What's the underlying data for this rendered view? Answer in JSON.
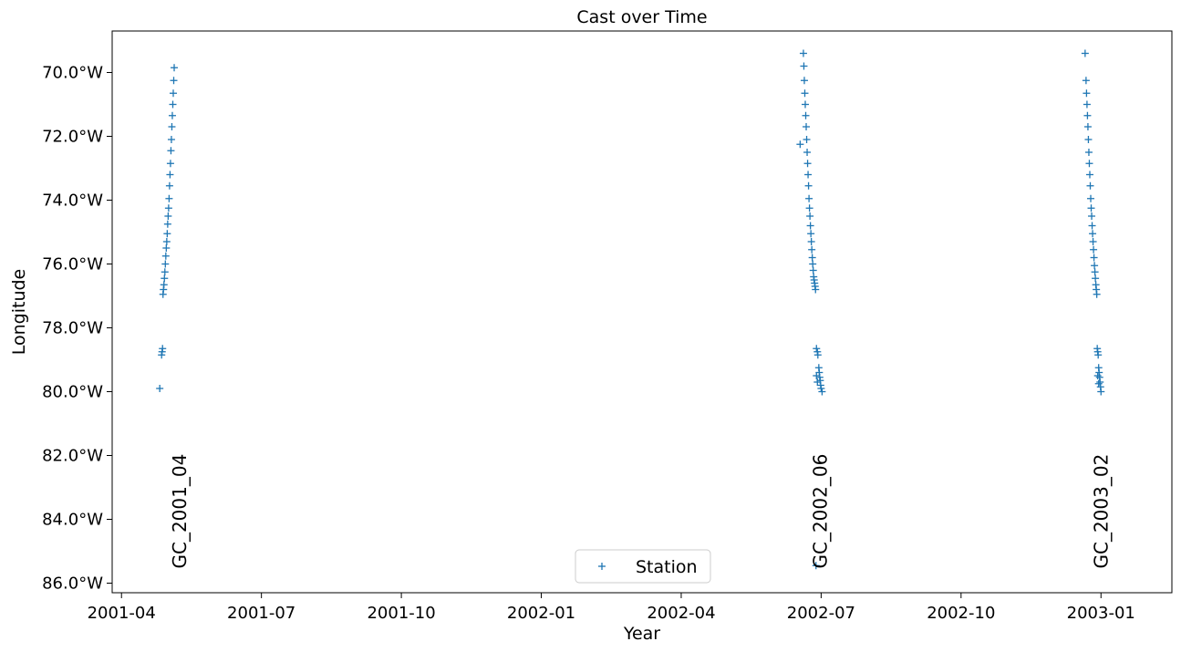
{
  "chart_data": {
    "type": "scatter",
    "title": "Cast over Time",
    "xlabel": "Year",
    "ylabel": "Longitude",
    "x_tick_labels": [
      "2001-04",
      "2001-07",
      "2001-10",
      "2002-01",
      "2002-04",
      "2002-07",
      "2002-10",
      "2003-01"
    ],
    "y_tick_values": [
      70,
      72,
      74,
      76,
      78,
      80,
      82,
      84,
      86
    ],
    "y_tick_labels": [
      "70.0°W",
      "72.0°W",
      "74.0°W",
      "76.0°W",
      "78.0°W",
      "80.0°W",
      "82.0°W",
      "84.0°W",
      "86.0°W"
    ],
    "xlim_months": [
      -0.2,
      22.52
    ],
    "ylim_west_deg": [
      68.7,
      86.3
    ],
    "y_axis_inverted": true,
    "legend": {
      "label": "Station",
      "marker": "+",
      "position": "lower-center"
    },
    "marker_color": "#1f77b4",
    "series": [
      {
        "name": "Station",
        "points": [
          {
            "month": 0.82,
            "lon": 79.9
          },
          {
            "month": 0.86,
            "lon": 78.85
          },
          {
            "month": 0.87,
            "lon": 78.75
          },
          {
            "month": 0.88,
            "lon": 78.65
          },
          {
            "month": 0.89,
            "lon": 76.95
          },
          {
            "month": 0.9,
            "lon": 76.8
          },
          {
            "month": 0.91,
            "lon": 76.65
          },
          {
            "month": 0.92,
            "lon": 76.45
          },
          {
            "month": 0.93,
            "lon": 76.25
          },
          {
            "month": 0.94,
            "lon": 76.0
          },
          {
            "month": 0.95,
            "lon": 75.75
          },
          {
            "month": 0.96,
            "lon": 75.5
          },
          {
            "month": 0.97,
            "lon": 75.3
          },
          {
            "month": 0.98,
            "lon": 75.05
          },
          {
            "month": 0.99,
            "lon": 74.75
          },
          {
            "month": 1.0,
            "lon": 74.5
          },
          {
            "month": 1.01,
            "lon": 74.25
          },
          {
            "month": 1.02,
            "lon": 73.95
          },
          {
            "month": 1.03,
            "lon": 73.55
          },
          {
            "month": 1.04,
            "lon": 73.2
          },
          {
            "month": 1.05,
            "lon": 72.85
          },
          {
            "month": 1.06,
            "lon": 72.45
          },
          {
            "month": 1.07,
            "lon": 72.1
          },
          {
            "month": 1.08,
            "lon": 71.7
          },
          {
            "month": 1.09,
            "lon": 71.35
          },
          {
            "month": 1.1,
            "lon": 71.0
          },
          {
            "month": 1.11,
            "lon": 70.65
          },
          {
            "month": 1.12,
            "lon": 70.25
          },
          {
            "month": 1.13,
            "lon": 69.85
          },
          {
            "month": 14.55,
            "lon": 72.25
          },
          {
            "month": 14.62,
            "lon": 69.4
          },
          {
            "month": 14.63,
            "lon": 69.8
          },
          {
            "month": 14.64,
            "lon": 70.25
          },
          {
            "month": 14.65,
            "lon": 70.65
          },
          {
            "month": 14.66,
            "lon": 71.0
          },
          {
            "month": 14.67,
            "lon": 71.35
          },
          {
            "month": 14.68,
            "lon": 71.7
          },
          {
            "month": 14.69,
            "lon": 72.1
          },
          {
            "month": 14.7,
            "lon": 72.5
          },
          {
            "month": 14.71,
            "lon": 72.85
          },
          {
            "month": 14.72,
            "lon": 73.2
          },
          {
            "month": 14.73,
            "lon": 73.55
          },
          {
            "month": 14.74,
            "lon": 73.95
          },
          {
            "month": 14.75,
            "lon": 74.25
          },
          {
            "month": 14.76,
            "lon": 74.5
          },
          {
            "month": 14.77,
            "lon": 74.8
          },
          {
            "month": 14.78,
            "lon": 75.05
          },
          {
            "month": 14.79,
            "lon": 75.3
          },
          {
            "month": 14.8,
            "lon": 75.55
          },
          {
            "month": 14.81,
            "lon": 75.8
          },
          {
            "month": 14.82,
            "lon": 76.0
          },
          {
            "month": 14.83,
            "lon": 76.2
          },
          {
            "month": 14.84,
            "lon": 76.4
          },
          {
            "month": 14.85,
            "lon": 76.5
          },
          {
            "month": 14.86,
            "lon": 76.6
          },
          {
            "month": 14.87,
            "lon": 76.7
          },
          {
            "month": 14.88,
            "lon": 76.8
          },
          {
            "month": 14.9,
            "lon": 78.65
          },
          {
            "month": 14.92,
            "lon": 78.75
          },
          {
            "month": 14.93,
            "lon": 78.85
          },
          {
            "month": 14.95,
            "lon": 79.25
          },
          {
            "month": 14.96,
            "lon": 79.4
          },
          {
            "month": 14.97,
            "lon": 79.55
          },
          {
            "month": 14.98,
            "lon": 79.65
          },
          {
            "month": 14.99,
            "lon": 79.8
          },
          {
            "month": 15.0,
            "lon": 79.9
          },
          {
            "month": 15.02,
            "lon": 80.0
          },
          {
            "month": 14.9,
            "lon": 79.5
          },
          {
            "month": 14.92,
            "lon": 79.7
          },
          {
            "month": 14.89,
            "lon": 85.45
          },
          {
            "month": 20.66,
            "lon": 69.4
          },
          {
            "month": 20.68,
            "lon": 70.25
          },
          {
            "month": 20.69,
            "lon": 70.65
          },
          {
            "month": 20.7,
            "lon": 71.0
          },
          {
            "month": 20.71,
            "lon": 71.35
          },
          {
            "month": 20.72,
            "lon": 71.7
          },
          {
            "month": 20.73,
            "lon": 72.1
          },
          {
            "month": 20.74,
            "lon": 72.5
          },
          {
            "month": 20.75,
            "lon": 72.85
          },
          {
            "month": 20.76,
            "lon": 73.2
          },
          {
            "month": 20.77,
            "lon": 73.55
          },
          {
            "month": 20.78,
            "lon": 73.95
          },
          {
            "month": 20.79,
            "lon": 74.25
          },
          {
            "month": 20.8,
            "lon": 74.5
          },
          {
            "month": 20.81,
            "lon": 74.8
          },
          {
            "month": 20.82,
            "lon": 75.05
          },
          {
            "month": 20.83,
            "lon": 75.3
          },
          {
            "month": 20.84,
            "lon": 75.55
          },
          {
            "month": 20.85,
            "lon": 75.8
          },
          {
            "month": 20.86,
            "lon": 76.05
          },
          {
            "month": 20.87,
            "lon": 76.25
          },
          {
            "month": 20.88,
            "lon": 76.45
          },
          {
            "month": 20.89,
            "lon": 76.65
          },
          {
            "month": 20.9,
            "lon": 76.8
          },
          {
            "month": 20.91,
            "lon": 76.95
          },
          {
            "month": 20.92,
            "lon": 78.65
          },
          {
            "month": 20.93,
            "lon": 78.75
          },
          {
            "month": 20.94,
            "lon": 78.85
          },
          {
            "month": 20.95,
            "lon": 79.25
          },
          {
            "month": 20.96,
            "lon": 79.4
          },
          {
            "month": 20.97,
            "lon": 79.55
          },
          {
            "month": 20.98,
            "lon": 79.7
          },
          {
            "month": 20.99,
            "lon": 79.85
          },
          {
            "month": 21.0,
            "lon": 80.0
          },
          {
            "month": 20.93,
            "lon": 79.5
          },
          {
            "month": 20.95,
            "lon": 79.75
          }
        ]
      }
    ],
    "annotations": [
      {
        "text": "GC_2001_04",
        "month": 1.25,
        "lon": 85.2
      },
      {
        "text": "GC_2002_06",
        "month": 14.98,
        "lon": 85.2
      },
      {
        "text": "GC_2003_02",
        "month": 21.0,
        "lon": 85.2
      }
    ]
  }
}
